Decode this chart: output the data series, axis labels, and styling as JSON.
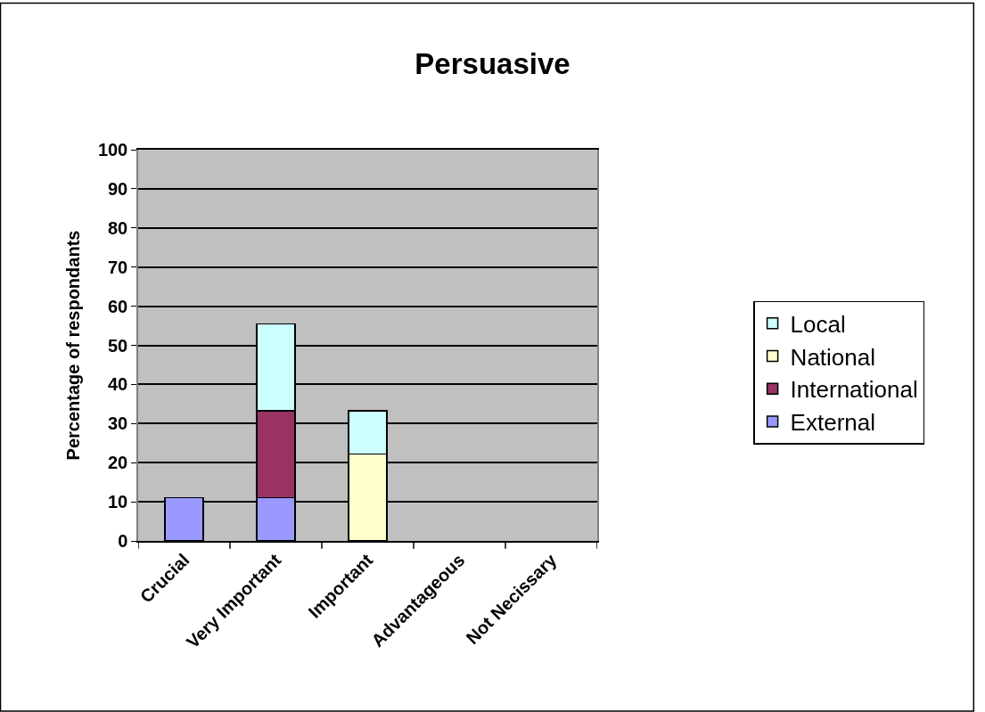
{
  "chart_data": {
    "type": "bar",
    "title": "Persuasive",
    "ylabel": "Percentage of respondants",
    "categories": [
      "Crucial",
      "Very Important",
      "Important",
      "Advantageous",
      "Not Necissary"
    ],
    "stacked": true,
    "ylim": [
      0,
      100
    ],
    "yticks": [
      0,
      10,
      20,
      30,
      40,
      50,
      60,
      70,
      80,
      90,
      100
    ],
    "grid": "y",
    "legend": "right",
    "series": [
      {
        "name": "External",
        "color": "#9999ff",
        "values": [
          11.1,
          11.1,
          null,
          null,
          null
        ]
      },
      {
        "name": "International",
        "color": "#993366",
        "values": [
          null,
          22.2,
          null,
          null,
          null
        ]
      },
      {
        "name": "National",
        "color": "#ffffcc",
        "values": [
          null,
          null,
          22.2,
          null,
          null
        ]
      },
      {
        "name": "Local",
        "color": "#ccffff",
        "values": [
          null,
          22.2,
          11.1,
          null,
          null
        ]
      }
    ]
  }
}
